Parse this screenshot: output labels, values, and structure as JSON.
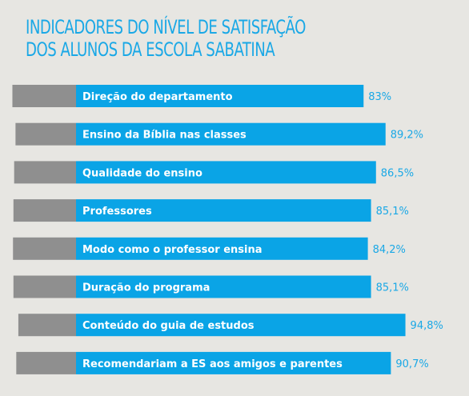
{
  "title": {
    "line1": "INDICADORES DO NÍVEL DE SATISFAÇÃO",
    "line2": "DOS ALUNOS DA ESCOLA SABATINA"
  },
  "colors": {
    "background": "#e7e6e2",
    "bar": "#0aa4e6",
    "bar_grey": "#8f8f8f",
    "value_text": "#1aa8e6",
    "label_text": "#ffffff"
  },
  "chart_data": {
    "type": "bar",
    "orientation": "horizontal",
    "title": "INDICADORES DO NÍVEL DE SATISFAÇÃO DOS ALUNOS DA ESCOLA SABATINA",
    "categories": [
      "Direção do departamento",
      "Ensino da Bíblia nas classes",
      "Qualidade do ensino",
      "Professores",
      "Modo como o professor ensina",
      "Duração do programa",
      "Conteúdo do guia de estudos",
      "Recomendariam a ES aos amigos e parentes"
    ],
    "values": [
      83,
      89.2,
      86.5,
      85.1,
      84.2,
      85.1,
      94.8,
      90.7
    ],
    "value_labels": [
      "83%",
      "89,2%",
      "86,5%",
      "85,1%",
      "84,2%",
      "85,1%",
      "94,8%",
      "90,7%"
    ],
    "unit": "%",
    "grid": false,
    "legend": "none"
  }
}
